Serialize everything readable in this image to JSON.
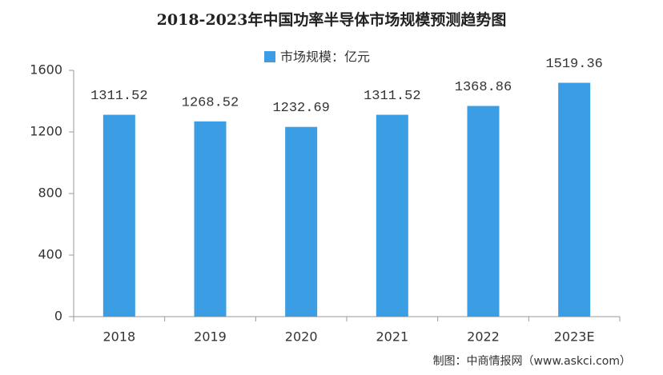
{
  "chart_data": {
    "type": "bar",
    "title": "2018-2023年中国功率半导体市场规模预测趋势图",
    "series": [
      {
        "name": "市场规模：亿元",
        "color": "#3b9de3",
        "values": [
          1311.52,
          1268.52,
          1232.69,
          1311.52,
          1368.86,
          1519.36
        ]
      }
    ],
    "categories": [
      "2018",
      "2019",
      "2020",
      "2021",
      "2022",
      "2023E"
    ],
    "ylim": [
      0,
      1600
    ],
    "yticks": [
      0,
      400,
      800,
      1200,
      1600
    ],
    "grid": false,
    "legend": "top",
    "source": "制图：中商情报网（www.askci.com）"
  }
}
